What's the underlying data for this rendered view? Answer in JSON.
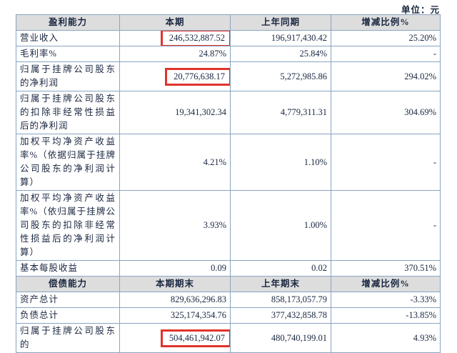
{
  "page": {
    "unit_label": "单位：元"
  },
  "colors": {
    "border": "#89a4c2",
    "header_background": "#dddddd",
    "text": "#1a2740",
    "highlight_box": "#e0342b"
  },
  "profitability": {
    "headers": [
      "盈利能力",
      "本期",
      "上年同期",
      "增减比例%"
    ],
    "rows": [
      {
        "label": "营业收入",
        "current": "246,532,887.52",
        "prior": "196,917,430.42",
        "change": "25.20%",
        "highlight_current": true,
        "change_top": false
      },
      {
        "label": "毛利率%",
        "current": "24.87%",
        "prior": "25.84%",
        "change": "-",
        "highlight_current": false,
        "change_top": false
      },
      {
        "label": "归属于挂牌公司股东的净利润",
        "current": "20,776,638.17",
        "prior": "5,272,985.86",
        "change": "294.02%",
        "highlight_current": true,
        "change_top": false
      },
      {
        "label": "归属于挂牌公司股东的扣除非经常性损益后的净利润",
        "current": "19,341,302.34",
        "prior": "4,779,311.31",
        "change": "304.69%",
        "highlight_current": false,
        "change_top": false
      },
      {
        "label": "加权平均净资产收益率%（依据归属于挂牌公司股东的净利润计算）",
        "current": "4.21%",
        "prior": "1.10%",
        "change": "-",
        "highlight_current": false,
        "change_top": true
      },
      {
        "label": "加权平均净资产收益率%（依归属于挂牌公司股东的扣除非经常性损益后的净利润计算）",
        "current": "3.93%",
        "prior": "1.00%",
        "change": "-",
        "highlight_current": false,
        "change_top": true
      },
      {
        "label": "基本每股收益",
        "current": "0.09",
        "prior": "0.02",
        "change": "370.51%",
        "highlight_current": false,
        "change_top": false
      }
    ]
  },
  "solvency": {
    "headers": [
      "偿债能力",
      "本期期末",
      "上年期末",
      "增减比例%"
    ],
    "rows": [
      {
        "label": "资产总计",
        "current": "829,636,296.83",
        "prior": "858,173,057.79",
        "change": "-3.33%",
        "highlight_current": false,
        "change_top": false
      },
      {
        "label": "负债总计",
        "current": "325,174,354.76",
        "prior": "377,432,858.78",
        "change": "-13.85%",
        "highlight_current": false,
        "change_top": false
      },
      {
        "label": "归属于挂牌公司股东的",
        "current": "504,461,942.07",
        "prior": "480,740,199.01",
        "change": "4.93%",
        "highlight_current": true,
        "change_top": false
      }
    ]
  }
}
